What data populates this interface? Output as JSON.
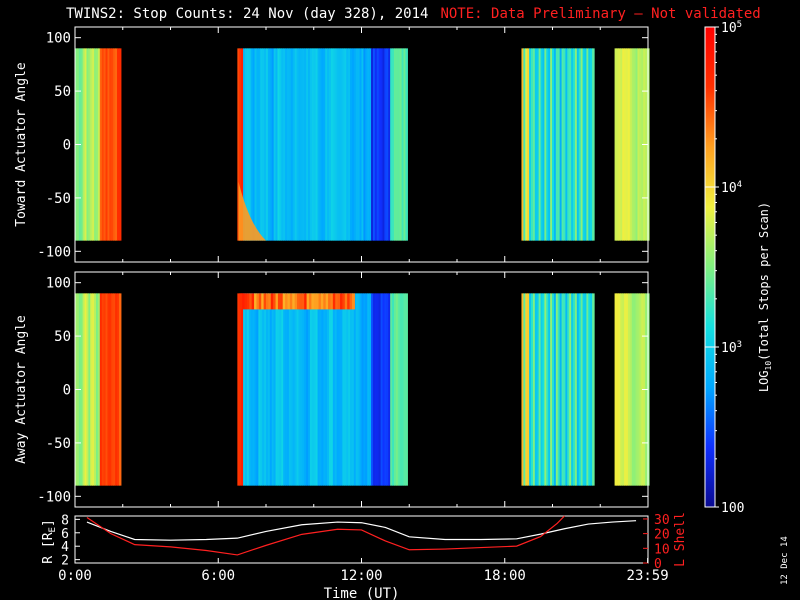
{
  "title": "TWINS2: Stop Counts: 24 Nov (day 328), 2014",
  "note": "NOTE: Data Preliminary – Not validated",
  "date_stamp": "12 Dec 14",
  "chart_data": [
    {
      "type": "heatmap",
      "ylabel": "Toward Actuator Angle",
      "ylim": [
        -110,
        110
      ],
      "yticks": [
        100,
        50,
        0,
        -50,
        -100
      ],
      "x_range_hours": [
        0,
        24
      ],
      "data_y_range": [
        -90,
        90
      ],
      "coverage_hours": [
        [
          0.0,
          1.9
        ],
        [
          6.8,
          13.9
        ],
        [
          18.7,
          21.7
        ],
        [
          22.6,
          23.98
        ]
      ],
      "panel": "top"
    },
    {
      "type": "heatmap",
      "ylabel": "Away Actuator Angle",
      "ylim": [
        -110,
        110
      ],
      "yticks": [
        100,
        50,
        0,
        -50,
        -100
      ],
      "x_range_hours": [
        0,
        24
      ],
      "data_y_range": [
        -90,
        90
      ],
      "coverage_hours": [
        [
          0.0,
          1.9
        ],
        [
          6.8,
          13.9
        ],
        [
          18.7,
          21.7
        ],
        [
          22.6,
          23.98
        ]
      ],
      "panel": "bottom"
    },
    {
      "type": "line",
      "ylabel_left": "R [R",
      "ylabel_left_sub": "E",
      "ylabel_left_end": "]",
      "ylabel_right": "L Shell",
      "left_yticks": [
        2,
        4,
        6,
        8
      ],
      "right_yticks": [
        0,
        10,
        20,
        30
      ],
      "left_ylim": [
        1.5,
        8.5
      ],
      "right_ylim": [
        0,
        32
      ],
      "xticks": [
        "0:00",
        "6:00",
        "12:00",
        "18:00",
        "23:59"
      ],
      "xtick_hours": [
        0,
        6,
        12,
        18,
        23.983
      ],
      "xlabel": "Time (UT)",
      "series": [
        {
          "label": "R",
          "color": "#ffffff",
          "axis": "left",
          "x": [
            0.5,
            1.5,
            2.5,
            4,
            5.5,
            6.8,
            8,
            9.5,
            11,
            12,
            13,
            14,
            15.5,
            17,
            18.5,
            19.5,
            20.5,
            21.5,
            22.5,
            23.5
          ],
          "y": [
            7.6,
            6.2,
            5.0,
            4.9,
            5.0,
            5.2,
            6.2,
            7.2,
            7.6,
            7.5,
            6.8,
            5.4,
            5.0,
            5.0,
            5.1,
            5.8,
            6.6,
            7.3,
            7.6,
            7.8
          ]
        },
        {
          "label": "L Shell",
          "color": "#ff2020",
          "axis": "right",
          "x": [
            0.5,
            1.5,
            2.5,
            4,
            5.5,
            6.8,
            8,
            9.5,
            11,
            12,
            13,
            14,
            15.5,
            17,
            18.5,
            19.5,
            20.2,
            20.5
          ],
          "y": [
            31,
            20,
            12.5,
            11,
            8.5,
            5.5,
            12,
            19.5,
            23,
            22.5,
            15,
            9,
            9.5,
            10.5,
            11.5,
            18,
            27,
            32
          ]
        }
      ]
    }
  ],
  "colorbar": {
    "label": "LOG",
    "label_sub": "10",
    "label_end": "(Total Stops per Scan)",
    "ticks": [
      "10^5",
      "10^4",
      "10^3",
      "100"
    ],
    "tick_values": [
      100000,
      10000,
      1000,
      100
    ],
    "range": [
      100,
      100000
    ],
    "colors": [
      "#0a0a90",
      "#1030ff",
      "#00a8ff",
      "#14e0e0",
      "#80f080",
      "#f0f040",
      "#ffa020",
      "#ff3000",
      "#ff0000"
    ]
  }
}
